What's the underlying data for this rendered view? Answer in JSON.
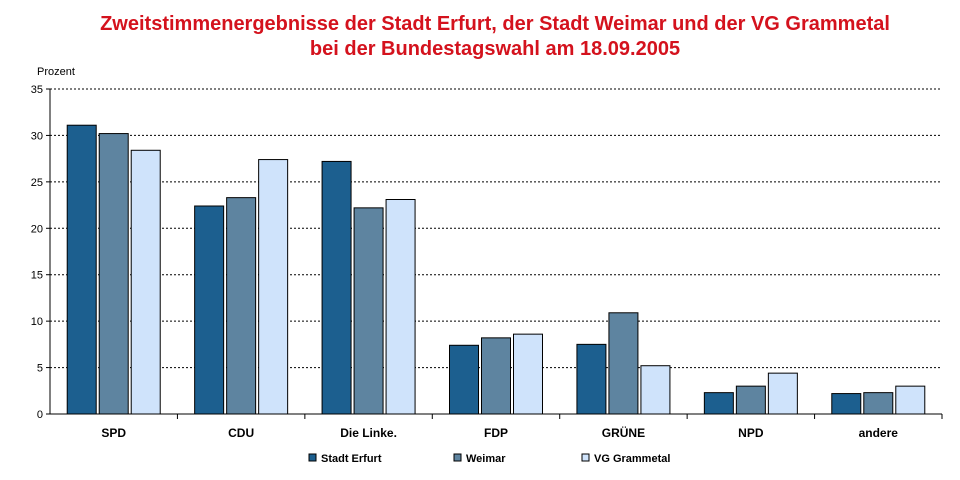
{
  "chart_data": {
    "type": "bar",
    "title": "Zweitstimmenergebnisse der Stadt Erfurt, der Stadt Weimar und der VG Grammetal",
    "subtitle": "bei der Bundestagswahl am 18.09.2005",
    "ylabel": "Prozent",
    "xlabel": "",
    "ylim": [
      0,
      35
    ],
    "yticks": [
      "0",
      "5",
      "10",
      "15",
      "20",
      "25",
      "30",
      "35"
    ],
    "grid": true,
    "legend_position": "bottom",
    "categories": [
      "SPD",
      "CDU",
      "Die Linke.",
      "FDP",
      "GRÜNE",
      "NPD",
      "andere"
    ],
    "series": [
      {
        "name": "Stadt Erfurt",
        "color": "#1c5f8f",
        "values": [
          31.1,
          22.4,
          27.2,
          7.4,
          7.5,
          2.3,
          2.2
        ]
      },
      {
        "name": "Weimar",
        "color": "#5e84a0",
        "values": [
          30.2,
          23.3,
          22.2,
          8.2,
          10.9,
          3.0,
          2.3
        ]
      },
      {
        "name": "VG Grammetal",
        "color": "#cfe3fb",
        "values": [
          28.4,
          27.4,
          23.1,
          8.6,
          5.2,
          4.4,
          3.0
        ]
      }
    ]
  }
}
